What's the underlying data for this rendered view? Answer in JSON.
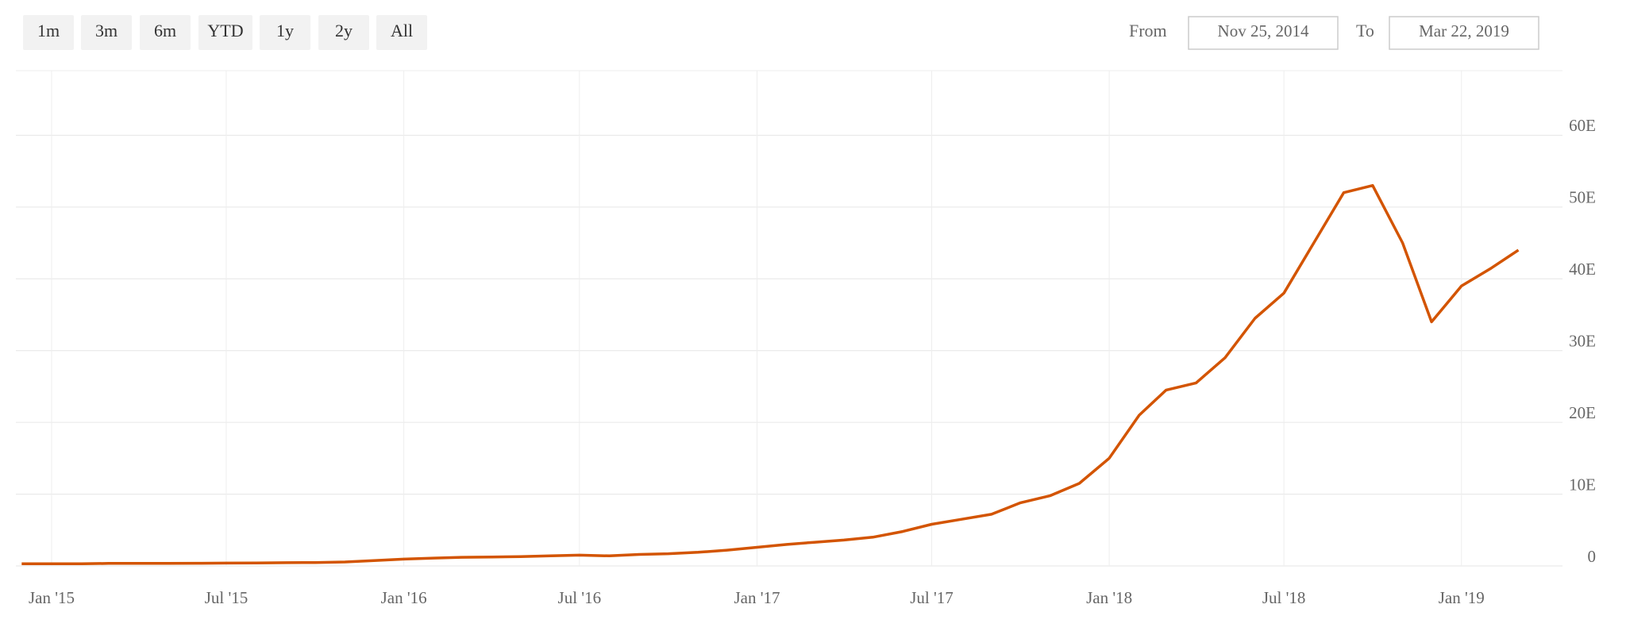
{
  "range_selector": {
    "buttons": [
      "1m",
      "3m",
      "6m",
      "YTD",
      "1y",
      "2y",
      "All"
    ],
    "from_label": "From",
    "from": "Nov 25, 2014",
    "to_label": "To",
    "to": "Mar 22, 2019"
  },
  "chart_data": {
    "type": "line",
    "x": [
      "2014-12",
      "2015-01",
      "2015-02",
      "2015-03",
      "2015-04",
      "2015-05",
      "2015-06",
      "2015-07",
      "2015-08",
      "2015-09",
      "2015-10",
      "2015-11",
      "2015-12",
      "2016-01",
      "2016-02",
      "2016-03",
      "2016-04",
      "2016-05",
      "2016-06",
      "2016-07",
      "2016-08",
      "2016-09",
      "2016-10",
      "2016-11",
      "2016-12",
      "2017-01",
      "2017-02",
      "2017-03",
      "2017-04",
      "2017-05",
      "2017-06",
      "2017-07",
      "2017-08",
      "2017-09",
      "2017-10",
      "2017-11",
      "2017-12",
      "2018-01",
      "2018-02",
      "2018-03",
      "2018-04",
      "2018-05",
      "2018-06",
      "2018-07",
      "2018-08",
      "2018-09",
      "2018-10",
      "2018-11",
      "2018-12",
      "2019-01",
      "2019-02",
      "2019-03"
    ],
    "series": [
      {
        "color": "#d35400",
        "values": [
          0.3,
          0.3,
          0.3,
          0.35,
          0.35,
          0.36,
          0.38,
          0.4,
          0.42,
          0.45,
          0.48,
          0.55,
          0.75,
          0.95,
          1.1,
          1.2,
          1.25,
          1.3,
          1.4,
          1.5,
          1.4,
          1.6,
          1.7,
          1.9,
          2.2,
          2.6,
          3.0,
          3.3,
          3.6,
          4.0,
          4.8,
          5.8,
          6.5,
          7.2,
          8.8,
          9.8,
          11.5,
          15.0,
          21.0,
          24.5,
          25.5,
          29.0,
          34.5,
          38.0,
          45.0,
          52.0,
          53.0,
          45.0,
          34.0,
          39.0,
          41.5,
          44.0
        ]
      }
    ],
    "xlim": [
      "2014-11-25",
      "2019-03-22"
    ],
    "xticks": [
      {
        "value": "2015-01",
        "label": "Jan '15"
      },
      {
        "value": "2015-07",
        "label": "Jul '15"
      },
      {
        "value": "2016-01",
        "label": "Jan '16"
      },
      {
        "value": "2016-07",
        "label": "Jul '16"
      },
      {
        "value": "2017-01",
        "label": "Jan '17"
      },
      {
        "value": "2017-07",
        "label": "Jul '17"
      },
      {
        "value": "2018-01",
        "label": "Jan '18"
      },
      {
        "value": "2018-07",
        "label": "Jul '18"
      },
      {
        "value": "2019-01",
        "label": "Jan '19"
      }
    ],
    "ylim": [
      0,
      69
    ],
    "yticks": [
      0,
      {
        "value": 10,
        "label": "10E"
      },
      {
        "value": 20,
        "label": "20E"
      },
      {
        "value": 30,
        "label": "30E"
      },
      {
        "value": 40,
        "label": "40E"
      },
      {
        "value": 50,
        "label": "50E"
      },
      {
        "value": 60,
        "label": "60E"
      }
    ],
    "grid": true
  }
}
